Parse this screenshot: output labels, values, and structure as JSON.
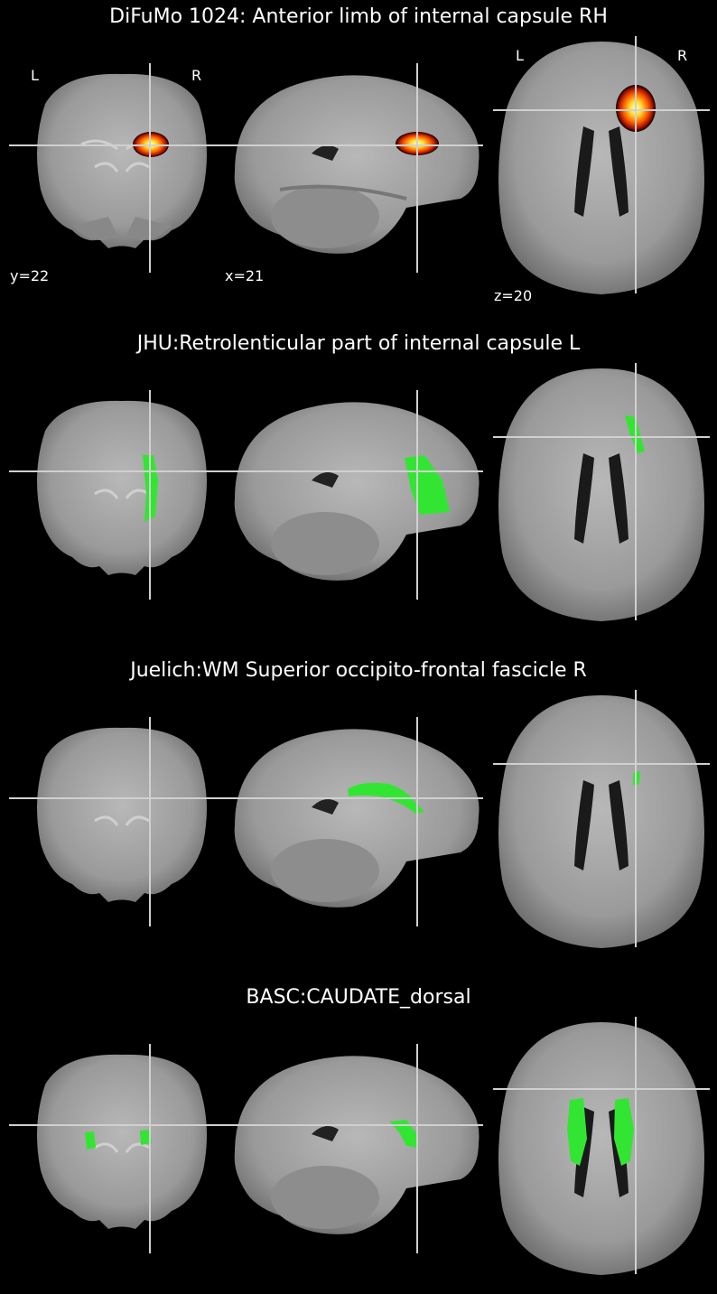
{
  "panels": [
    {
      "title": "DiFuMo 1024: Anterior limb of internal capsule RH",
      "overlay": "heat",
      "orientation_labels": {
        "left": "L",
        "right": "R"
      },
      "coords": {
        "y": "y=22",
        "x": "x=21",
        "z": "z=20"
      }
    },
    {
      "title": "JHU:Retrolenticular part of internal capsule L",
      "overlay": "green-retro"
    },
    {
      "title": "Juelich:WM Superior occipito-frontal fascicle R",
      "overlay": "green-sof"
    },
    {
      "title": "BASC:CAUDATE_dorsal",
      "overlay": "green-caudate"
    }
  ],
  "colors": {
    "background": "#000000",
    "overlay_green": "#33e533",
    "crosshair": "#d0d0d0",
    "heat_core": "#ffff66",
    "heat_edge": "#cc2200"
  }
}
